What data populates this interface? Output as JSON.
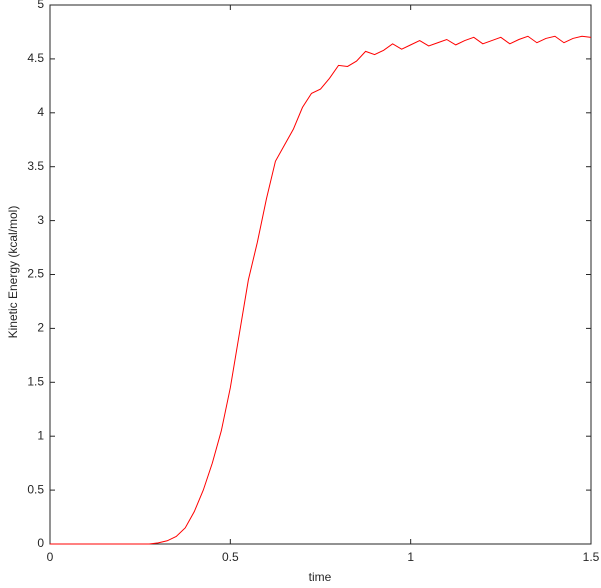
{
  "chart_data": {
    "type": "line",
    "x_label": "time",
    "y_label": "Kinetic Energy (kcal/mol)",
    "x": [
      0,
      0.025,
      0.05,
      0.075,
      0.1,
      0.125,
      0.15,
      0.175,
      0.2,
      0.225,
      0.25,
      0.275,
      0.3,
      0.325,
      0.35,
      0.375,
      0.4,
      0.425,
      0.45,
      0.475,
      0.5,
      0.525,
      0.55,
      0.575,
      0.6,
      0.625,
      0.65,
      0.675,
      0.7,
      0.725,
      0.75,
      0.775,
      0.8,
      0.825,
      0.85,
      0.875,
      0.9,
      0.925,
      0.95,
      0.975,
      1.0,
      1.025,
      1.05,
      1.075,
      1.1,
      1.125,
      1.15,
      1.175,
      1.2,
      1.225,
      1.25,
      1.275,
      1.3,
      1.325,
      1.35,
      1.375,
      1.4,
      1.425,
      1.45,
      1.475,
      1.5
    ],
    "series": [
      {
        "color": "#ff0000",
        "values": [
          0,
          0,
          0,
          0,
          0,
          0,
          0,
          0,
          0,
          0,
          0,
          0,
          0.01,
          0.03,
          0.07,
          0.15,
          0.3,
          0.5,
          0.75,
          1.05,
          1.45,
          1.95,
          2.45,
          2.8,
          3.2,
          3.55,
          3.7,
          3.85,
          4.05,
          4.18,
          4.22,
          4.32,
          4.44,
          4.43,
          4.48,
          4.57,
          4.54,
          4.58,
          4.64,
          4.59,
          4.63,
          4.67,
          4.62,
          4.65,
          4.68,
          4.63,
          4.67,
          4.7,
          4.64,
          4.67,
          4.7,
          4.64,
          4.68,
          4.71,
          4.65,
          4.69,
          4.71,
          4.65,
          4.69,
          4.71,
          4.7
        ]
      }
    ],
    "xlim": [
      0,
      1.5
    ],
    "xticks": [
      0,
      0.5,
      1,
      1.5
    ],
    "ylim": [
      0,
      5
    ],
    "yticks": [
      0,
      0.5,
      1,
      1.5,
      2,
      2.5,
      3,
      3.5,
      4,
      4.5,
      5
    ],
    "grid": false
  }
}
